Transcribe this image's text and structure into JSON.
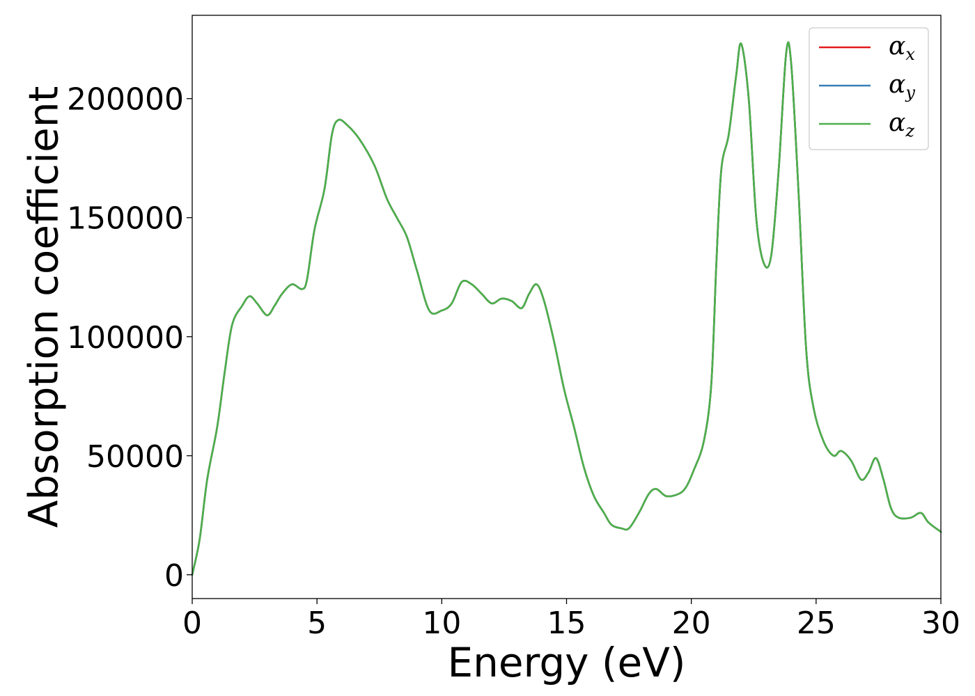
{
  "chart_data": {
    "type": "line",
    "title": "",
    "xlabel": "Energy (eV)",
    "ylabel": "Absorption coefficient",
    "xlim": [
      0,
      30
    ],
    "ylim": [
      -10000,
      235000
    ],
    "xticks": [
      0,
      5,
      10,
      15,
      20,
      25,
      30
    ],
    "yticks": [
      0,
      50000,
      100000,
      150000,
      200000
    ],
    "grid": false,
    "legend_position": "top-right",
    "series": [
      {
        "name_base": "α",
        "name_sub": "x",
        "color": "#e41a1c",
        "points": [
          [
            0,
            0
          ],
          [
            0.3,
            15000
          ],
          [
            0.6,
            40000
          ],
          [
            1.0,
            62000
          ],
          [
            1.3,
            85000
          ],
          [
            1.6,
            105000
          ],
          [
            2.0,
            113000
          ],
          [
            2.3,
            117000
          ],
          [
            2.6,
            114000
          ],
          [
            3.0,
            109000
          ],
          [
            3.3,
            113000
          ],
          [
            3.6,
            118000
          ],
          [
            4.0,
            122000
          ],
          [
            4.4,
            120000
          ],
          [
            4.6,
            124000
          ],
          [
            4.9,
            145000
          ],
          [
            5.3,
            162000
          ],
          [
            5.6,
            185000
          ],
          [
            5.85,
            191000
          ],
          [
            6.2,
            189000
          ],
          [
            6.7,
            183000
          ],
          [
            7.3,
            172000
          ],
          [
            7.8,
            158000
          ],
          [
            8.2,
            150000
          ],
          [
            8.6,
            142000
          ],
          [
            9.0,
            128000
          ],
          [
            9.5,
            111000
          ],
          [
            10.0,
            111000
          ],
          [
            10.4,
            114000
          ],
          [
            10.8,
            123000
          ],
          [
            11.2,
            122000
          ],
          [
            11.6,
            118000
          ],
          [
            12.0,
            114000
          ],
          [
            12.4,
            116000
          ],
          [
            12.8,
            115000
          ],
          [
            13.2,
            112000
          ],
          [
            13.5,
            118000
          ],
          [
            13.8,
            122000
          ],
          [
            14.1,
            115000
          ],
          [
            14.5,
            98000
          ],
          [
            14.9,
            78000
          ],
          [
            15.3,
            62000
          ],
          [
            15.7,
            45000
          ],
          [
            16.1,
            33000
          ],
          [
            16.5,
            26000
          ],
          [
            16.8,
            21000
          ],
          [
            17.2,
            19500
          ],
          [
            17.5,
            19500
          ],
          [
            17.9,
            26000
          ],
          [
            18.3,
            34000
          ],
          [
            18.6,
            36000
          ],
          [
            19.0,
            33000
          ],
          [
            19.5,
            34000
          ],
          [
            19.8,
            37000
          ],
          [
            20.1,
            44000
          ],
          [
            20.5,
            56000
          ],
          [
            20.8,
            80000
          ],
          [
            21.0,
            130000
          ],
          [
            21.2,
            170000
          ],
          [
            21.5,
            185000
          ],
          [
            21.8,
            210000
          ],
          [
            22.0,
            223000
          ],
          [
            22.3,
            200000
          ],
          [
            22.6,
            150000
          ],
          [
            22.9,
            131000
          ],
          [
            23.2,
            134000
          ],
          [
            23.5,
            170000
          ],
          [
            23.8,
            219000
          ],
          [
            24.0,
            215000
          ],
          [
            24.3,
            160000
          ],
          [
            24.6,
            95000
          ],
          [
            24.9,
            70000
          ],
          [
            25.3,
            56000
          ],
          [
            25.7,
            50000
          ],
          [
            26.0,
            52000
          ],
          [
            26.4,
            48000
          ],
          [
            26.8,
            40000
          ],
          [
            27.1,
            43000
          ],
          [
            27.4,
            49000
          ],
          [
            27.7,
            40000
          ],
          [
            28.0,
            28000
          ],
          [
            28.3,
            24000
          ],
          [
            28.8,
            24000
          ],
          [
            29.2,
            26000
          ],
          [
            29.5,
            22000
          ],
          [
            30.0,
            18000
          ]
        ]
      },
      {
        "name_base": "α",
        "name_sub": "y",
        "color": "#377eb8",
        "points": [
          [
            0,
            0
          ],
          [
            0.3,
            15000
          ],
          [
            0.6,
            40000
          ],
          [
            1.0,
            62000
          ],
          [
            1.3,
            85000
          ],
          [
            1.6,
            105000
          ],
          [
            2.0,
            113000
          ],
          [
            2.3,
            117000
          ],
          [
            2.6,
            114000
          ],
          [
            3.0,
            109000
          ],
          [
            3.3,
            113000
          ],
          [
            3.6,
            118000
          ],
          [
            4.0,
            122000
          ],
          [
            4.4,
            120000
          ],
          [
            4.6,
            124000
          ],
          [
            4.9,
            145000
          ],
          [
            5.3,
            162000
          ],
          [
            5.6,
            185000
          ],
          [
            5.85,
            191000
          ],
          [
            6.2,
            189000
          ],
          [
            6.7,
            183000
          ],
          [
            7.3,
            172000
          ],
          [
            7.8,
            158000
          ],
          [
            8.2,
            150000
          ],
          [
            8.6,
            142000
          ],
          [
            9.0,
            128000
          ],
          [
            9.5,
            111000
          ],
          [
            10.0,
            111000
          ],
          [
            10.4,
            114000
          ],
          [
            10.8,
            123000
          ],
          [
            11.2,
            122000
          ],
          [
            11.6,
            118000
          ],
          [
            12.0,
            114000
          ],
          [
            12.4,
            116000
          ],
          [
            12.8,
            115000
          ],
          [
            13.2,
            112000
          ],
          [
            13.5,
            118000
          ],
          [
            13.8,
            122000
          ],
          [
            14.1,
            115000
          ],
          [
            14.5,
            98000
          ],
          [
            14.9,
            78000
          ],
          [
            15.3,
            62000
          ],
          [
            15.7,
            45000
          ],
          [
            16.1,
            33000
          ],
          [
            16.5,
            26000
          ],
          [
            16.8,
            21000
          ],
          [
            17.2,
            19500
          ],
          [
            17.5,
            19500
          ],
          [
            17.9,
            26000
          ],
          [
            18.3,
            34000
          ],
          [
            18.6,
            36000
          ],
          [
            19.0,
            33000
          ],
          [
            19.5,
            34000
          ],
          [
            19.8,
            37000
          ],
          [
            20.1,
            44000
          ],
          [
            20.5,
            56000
          ],
          [
            20.8,
            80000
          ],
          [
            21.0,
            130000
          ],
          [
            21.2,
            170000
          ],
          [
            21.5,
            185000
          ],
          [
            21.8,
            210000
          ],
          [
            22.0,
            223000
          ],
          [
            22.3,
            200000
          ],
          [
            22.6,
            150000
          ],
          [
            22.9,
            131000
          ],
          [
            23.2,
            134000
          ],
          [
            23.5,
            170000
          ],
          [
            23.8,
            219000
          ],
          [
            24.0,
            215000
          ],
          [
            24.3,
            160000
          ],
          [
            24.6,
            95000
          ],
          [
            24.9,
            70000
          ],
          [
            25.3,
            56000
          ],
          [
            25.7,
            50000
          ],
          [
            26.0,
            52000
          ],
          [
            26.4,
            48000
          ],
          [
            26.8,
            40000
          ],
          [
            27.1,
            43000
          ],
          [
            27.4,
            49000
          ],
          [
            27.7,
            40000
          ],
          [
            28.0,
            28000
          ],
          [
            28.3,
            24000
          ],
          [
            28.8,
            24000
          ],
          [
            29.2,
            26000
          ],
          [
            29.5,
            22000
          ],
          [
            30.0,
            18000
          ]
        ]
      },
      {
        "name_base": "α",
        "name_sub": "z",
        "color": "#4daf4a",
        "points": [
          [
            0,
            0
          ],
          [
            0.3,
            15000
          ],
          [
            0.6,
            40000
          ],
          [
            1.0,
            62000
          ],
          [
            1.3,
            85000
          ],
          [
            1.6,
            105000
          ],
          [
            2.0,
            113000
          ],
          [
            2.3,
            117000
          ],
          [
            2.6,
            114000
          ],
          [
            3.0,
            109000
          ],
          [
            3.3,
            113000
          ],
          [
            3.6,
            118000
          ],
          [
            4.0,
            122000
          ],
          [
            4.4,
            120000
          ],
          [
            4.6,
            124000
          ],
          [
            4.9,
            145000
          ],
          [
            5.3,
            162000
          ],
          [
            5.6,
            185000
          ],
          [
            5.85,
            191000
          ],
          [
            6.2,
            189000
          ],
          [
            6.7,
            183000
          ],
          [
            7.3,
            172000
          ],
          [
            7.8,
            158000
          ],
          [
            8.2,
            150000
          ],
          [
            8.6,
            142000
          ],
          [
            9.0,
            128000
          ],
          [
            9.5,
            111000
          ],
          [
            10.0,
            111000
          ],
          [
            10.4,
            114000
          ],
          [
            10.8,
            123000
          ],
          [
            11.2,
            122000
          ],
          [
            11.6,
            118000
          ],
          [
            12.0,
            114000
          ],
          [
            12.4,
            116000
          ],
          [
            12.8,
            115000
          ],
          [
            13.2,
            112000
          ],
          [
            13.5,
            118000
          ],
          [
            13.8,
            122000
          ],
          [
            14.1,
            115000
          ],
          [
            14.5,
            98000
          ],
          [
            14.9,
            78000
          ],
          [
            15.3,
            62000
          ],
          [
            15.7,
            45000
          ],
          [
            16.1,
            33000
          ],
          [
            16.5,
            26000
          ],
          [
            16.8,
            21000
          ],
          [
            17.2,
            19500
          ],
          [
            17.5,
            19500
          ],
          [
            17.9,
            26000
          ],
          [
            18.3,
            34000
          ],
          [
            18.6,
            36000
          ],
          [
            19.0,
            33000
          ],
          [
            19.5,
            34000
          ],
          [
            19.8,
            37000
          ],
          [
            20.1,
            44000
          ],
          [
            20.5,
            56000
          ],
          [
            20.8,
            80000
          ],
          [
            21.0,
            130000
          ],
          [
            21.2,
            170000
          ],
          [
            21.5,
            185000
          ],
          [
            21.8,
            210000
          ],
          [
            22.0,
            223000
          ],
          [
            22.3,
            200000
          ],
          [
            22.6,
            150000
          ],
          [
            22.9,
            131000
          ],
          [
            23.2,
            134000
          ],
          [
            23.5,
            170000
          ],
          [
            23.8,
            219000
          ],
          [
            24.0,
            215000
          ],
          [
            24.3,
            160000
          ],
          [
            24.6,
            95000
          ],
          [
            24.9,
            70000
          ],
          [
            25.3,
            56000
          ],
          [
            25.7,
            50000
          ],
          [
            26.0,
            52000
          ],
          [
            26.4,
            48000
          ],
          [
            26.8,
            40000
          ],
          [
            27.1,
            43000
          ],
          [
            27.4,
            49000
          ],
          [
            27.7,
            40000
          ],
          [
            28.0,
            28000
          ],
          [
            28.3,
            24000
          ],
          [
            28.8,
            24000
          ],
          [
            29.2,
            26000
          ],
          [
            29.5,
            22000
          ],
          [
            30.0,
            18000
          ]
        ]
      }
    ]
  }
}
